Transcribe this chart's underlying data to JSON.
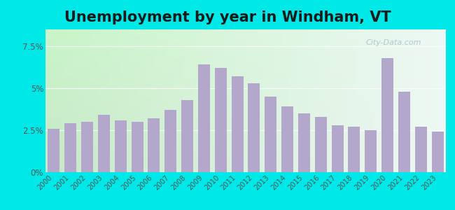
{
  "title": "Unemployment by year in Windham, VT",
  "years": [
    2000,
    2001,
    2002,
    2003,
    2004,
    2005,
    2006,
    2007,
    2008,
    2009,
    2010,
    2011,
    2012,
    2013,
    2014,
    2015,
    2016,
    2017,
    2018,
    2019,
    2020,
    2021,
    2022,
    2023
  ],
  "values": [
    2.6,
    2.9,
    3.0,
    3.4,
    3.1,
    3.0,
    3.2,
    3.7,
    4.3,
    6.4,
    6.2,
    5.7,
    5.3,
    4.5,
    3.9,
    3.5,
    3.3,
    2.8,
    2.7,
    2.5,
    6.8,
    4.8,
    2.7,
    2.4
  ],
  "bar_color": "#b3a8cc",
  "bg_outer": "#00e8e8",
  "bg_grad_topleft": "#c8e8c8",
  "bg_grad_right": "#eef8f4",
  "yticks": [
    0.0,
    2.5,
    5.0,
    7.5
  ],
  "ytick_labels": [
    "0%",
    "2.5%",
    "5%",
    "7.5%"
  ],
  "ylim": [
    0,
    8.5
  ],
  "title_fontsize": 15,
  "watermark": "City-Data.com"
}
